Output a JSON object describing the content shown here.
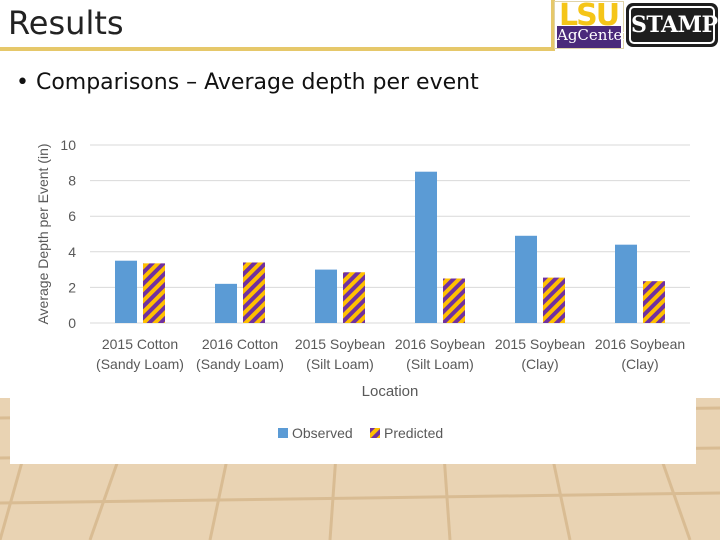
{
  "slide": {
    "title": "Results",
    "bullet": "• Comparisons – Average depth per event",
    "logo_lsu_text": "LSU",
    "logo_agcenter_text": "AgCenter",
    "logo_stamp_text": "STAMP"
  },
  "colors": {
    "observed": "#5b9bd5",
    "predicted_a": "#7030a0",
    "predicted_b": "#ffc000",
    "accent_border": "#e6c86a",
    "grid": "#d9d9d9",
    "axis_text": "#595959"
  },
  "chart_data": {
    "type": "bar",
    "categories": [
      [
        "2015 Cotton",
        "(Sandy Loam)"
      ],
      [
        "2016 Cotton",
        "(Sandy Loam)"
      ],
      [
        "2015 Soybean",
        "(Silt Loam)"
      ],
      [
        "2016 Soybean",
        "(Silt Loam)"
      ],
      [
        "2015 Soybean",
        "(Clay)"
      ],
      [
        "2016 Soybean",
        "(Clay)"
      ]
    ],
    "series": [
      {
        "name": "Observed",
        "values": [
          3.5,
          2.2,
          3.0,
          8.5,
          4.9,
          4.4
        ]
      },
      {
        "name": "Predicted",
        "values": [
          3.35,
          3.4,
          2.85,
          2.5,
          2.55,
          2.35
        ]
      }
    ],
    "title": "",
    "xlabel": "Location",
    "ylabel": "Average Depth per Event (in)",
    "ylim": [
      0,
      10
    ],
    "yticks": [
      0,
      2,
      4,
      6,
      8,
      10
    ],
    "grid": true,
    "legend_position": "bottom"
  }
}
